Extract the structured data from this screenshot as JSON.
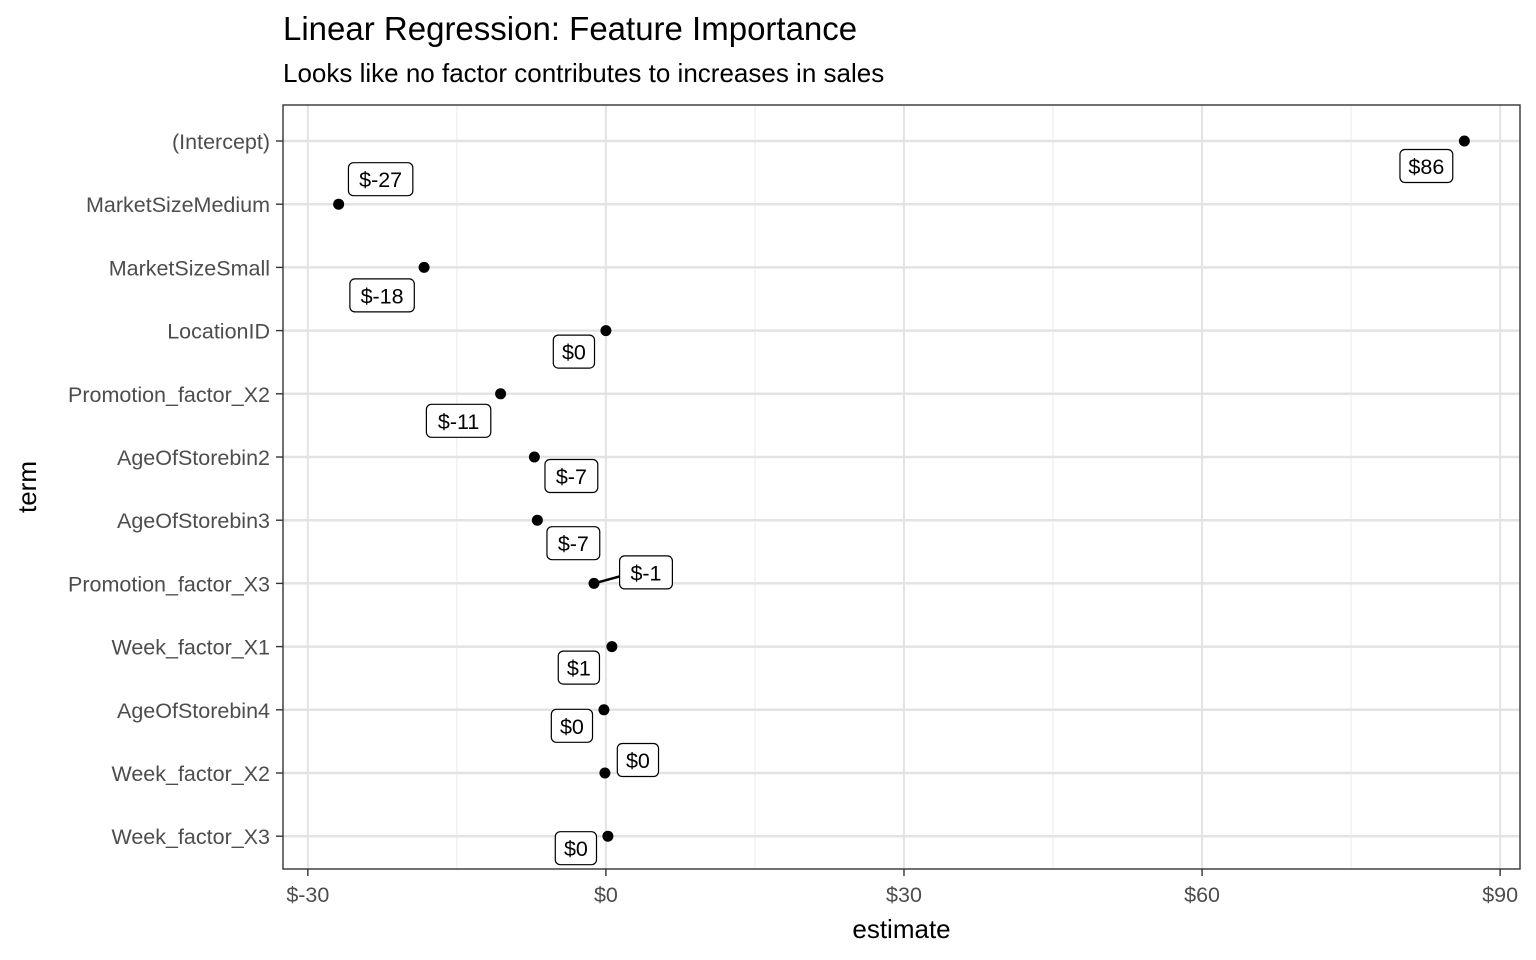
{
  "chart_data": {
    "type": "scatter",
    "title": "Linear Regression: Feature Importance",
    "subtitle": "Looks like no factor contributes to increases in sales",
    "xlabel": "estimate",
    "ylabel": "term",
    "xlim": [
      -32.5,
      92
    ],
    "x_ticks": [
      -30,
      0,
      30,
      60,
      90
    ],
    "x_tick_labels": [
      "$-30",
      "$0",
      "$30",
      "$60",
      "$90"
    ],
    "grid": true,
    "terms": [
      "(Intercept)",
      "MarketSizeMedium",
      "MarketSizeSmall",
      "LocationID",
      "Promotion_factor_X2",
      "AgeOfStorebin2",
      "AgeOfStorebin3",
      "Promotion_factor_X3",
      "Week_factor_X1",
      "AgeOfStorebin4",
      "Week_factor_X2",
      "Week_factor_X3"
    ],
    "points": [
      {
        "term": "(Intercept)",
        "estimate": 86.4,
        "label": "$86"
      },
      {
        "term": "MarketSizeMedium",
        "estimate": -26.9,
        "label": "$-27"
      },
      {
        "term": "MarketSizeSmall",
        "estimate": -18.3,
        "label": "$-18"
      },
      {
        "term": "LocationID",
        "estimate": 0.0,
        "label": "$0"
      },
      {
        "term": "Promotion_factor_X2",
        "estimate": -10.6,
        "label": "$-11"
      },
      {
        "term": "AgeOfStorebin2",
        "estimate": -7.2,
        "label": "$-7"
      },
      {
        "term": "AgeOfStorebin3",
        "estimate": -6.9,
        "label": "$-7"
      },
      {
        "term": "Promotion_factor_X3",
        "estimate": -1.2,
        "label": "$-1"
      },
      {
        "term": "Week_factor_X1",
        "estimate": 0.6,
        "label": "$1"
      },
      {
        "term": "AgeOfStorebin4",
        "estimate": -0.2,
        "label": "$0"
      },
      {
        "term": "Week_factor_X2",
        "estimate": -0.1,
        "label": "$0"
      },
      {
        "term": "Week_factor_X3",
        "estimate": 0.2,
        "label": "$0"
      }
    ]
  }
}
